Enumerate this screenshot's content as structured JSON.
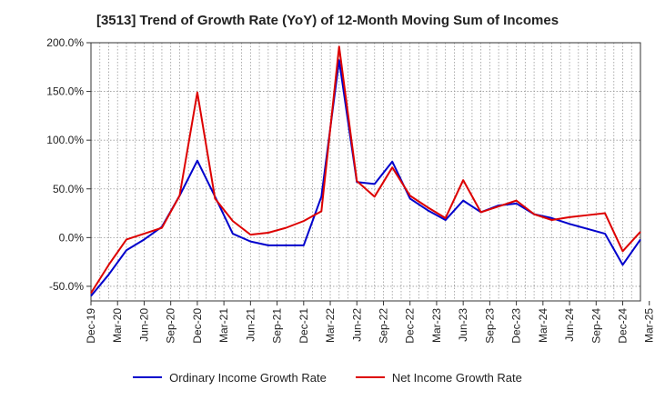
{
  "chart_data": {
    "type": "line",
    "title": "[3513]  Trend of Growth Rate (YoY) of 12-Month Moving Sum of Incomes",
    "xlabel": "",
    "ylabel": "",
    "ylim": [
      -65,
      200
    ],
    "yticks": [
      200,
      150,
      100,
      50,
      0,
      -50
    ],
    "ytick_labels": [
      "200.0%",
      "150.0%",
      "100.0%",
      "50.0%",
      "0.0%",
      "-50.0%"
    ],
    "x_start_month": "Dec-19",
    "x_count": 63,
    "x_tick_labels": [
      "Dec-19",
      "Mar-20",
      "Jun-20",
      "Sep-20",
      "Dec-20",
      "Mar-21",
      "Jun-21",
      "Sep-21",
      "Dec-21",
      "Mar-22",
      "Jun-22",
      "Sep-22",
      "Dec-22",
      "Mar-23",
      "Jun-23",
      "Sep-23",
      "Dec-23",
      "Mar-24",
      "Jun-24",
      "Sep-24",
      "Dec-24",
      "Mar-25"
    ],
    "grid": true,
    "legend_position": "bottom",
    "series": [
      {
        "name": "Ordinary Income Growth Rate",
        "color": "#0000cc",
        "values": [
          -60,
          -38,
          -13,
          -2,
          11,
          43,
          79,
          42,
          4,
          -4,
          -8,
          -8,
          -8,
          42,
          182,
          57,
          55,
          78,
          40,
          28,
          18,
          38,
          26,
          33,
          35,
          24,
          20,
          14,
          9,
          4,
          -28,
          -2
        ]
      },
      {
        "name": "Net Income Growth Rate",
        "color": "#dd0000",
        "values": [
          -57,
          -28,
          -2,
          4,
          10,
          43,
          149,
          40,
          17,
          3,
          5,
          10,
          17,
          27,
          196,
          58,
          42,
          72,
          43,
          31,
          20,
          59,
          26,
          32,
          38,
          24,
          18,
          21,
          23,
          25,
          -14,
          6
        ]
      }
    ]
  }
}
